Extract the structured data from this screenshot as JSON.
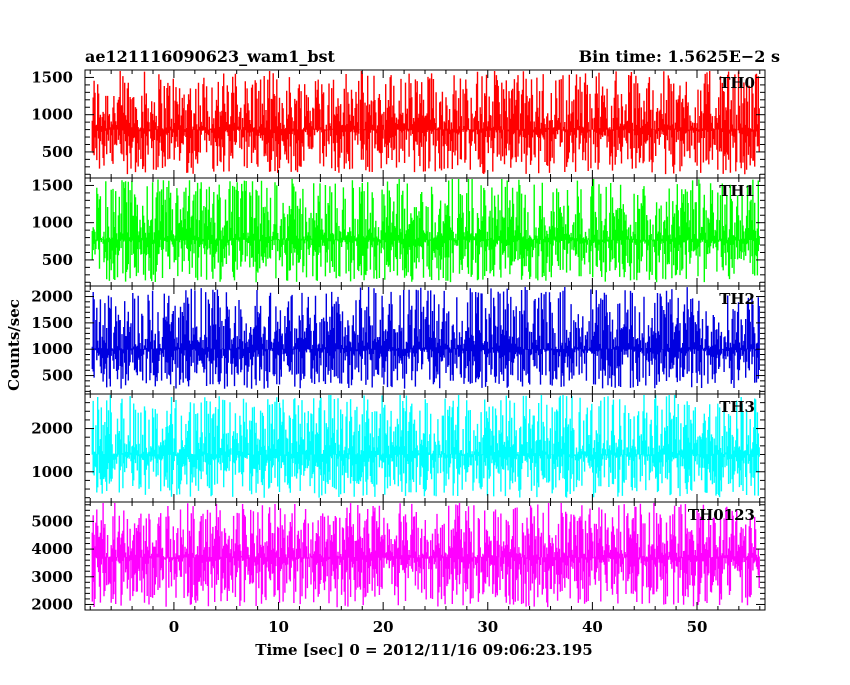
{
  "header": {
    "left_title": "ae121116090623_wam1_bst",
    "right_title": "Bin time: 1.5625E−2 s"
  },
  "chart_data": {
    "type": "line",
    "style": "stacked light-curve panels (histogram-like step lines)",
    "xlabel": "Time [sec] 0 = 2012/11/16 09:06:23.195",
    "ylabel": "Counts/sec",
    "xlim": [
      -8.5,
      56.5
    ],
    "x_data_range": [
      -7.8,
      56.0
    ],
    "bin_time_s": 0.015625,
    "x_ticks": [
      0,
      10,
      20,
      30,
      40,
      50
    ],
    "x_tick_labels": [
      "0",
      "10",
      "20",
      "30",
      "40",
      "50"
    ],
    "panels": [
      {
        "name": "TH0",
        "color": "#ff0000",
        "ylim": [
          150,
          1600
        ],
        "y_ticks": [
          500,
          1000,
          1500
        ],
        "y_tick_labels": [
          "500",
          "1000",
          "1500"
        ],
        "approx_mean": 800,
        "approx_min": 200,
        "approx_max": 1600
      },
      {
        "name": "TH1",
        "color": "#00ff00",
        "ylim": [
          150,
          1600
        ],
        "y_ticks": [
          500,
          1000,
          1500
        ],
        "y_tick_labels": [
          "500",
          "1000",
          "1500"
        ],
        "approx_mean": 770,
        "approx_min": 200,
        "approx_max": 1600
      },
      {
        "name": "TH2",
        "color": "#0000e0",
        "ylim": [
          150,
          2200
        ],
        "y_ticks": [
          500,
          1000,
          1500,
          2000
        ],
        "y_tick_labels": [
          "500",
          "1000",
          "1500",
          "2000"
        ],
        "approx_mean": 1000,
        "approx_min": 250,
        "approx_max": 2200
      },
      {
        "name": "TH3",
        "color": "#00ffff",
        "ylim": [
          300,
          2800
        ],
        "y_ticks": [
          1000,
          2000
        ],
        "y_tick_labels": [
          "1000",
          "2000"
        ],
        "approx_mean": 1400,
        "approx_min": 400,
        "approx_max": 2800
      },
      {
        "name": "TH0123",
        "color": "#ff00ff",
        "ylim": [
          1800,
          5700
        ],
        "y_ticks": [
          2000,
          3000,
          4000,
          5000
        ],
        "y_tick_labels": [
          "2000",
          "3000",
          "4000",
          "5000"
        ],
        "approx_mean": 3700,
        "approx_min": 1900,
        "approx_max": 5700
      }
    ]
  }
}
